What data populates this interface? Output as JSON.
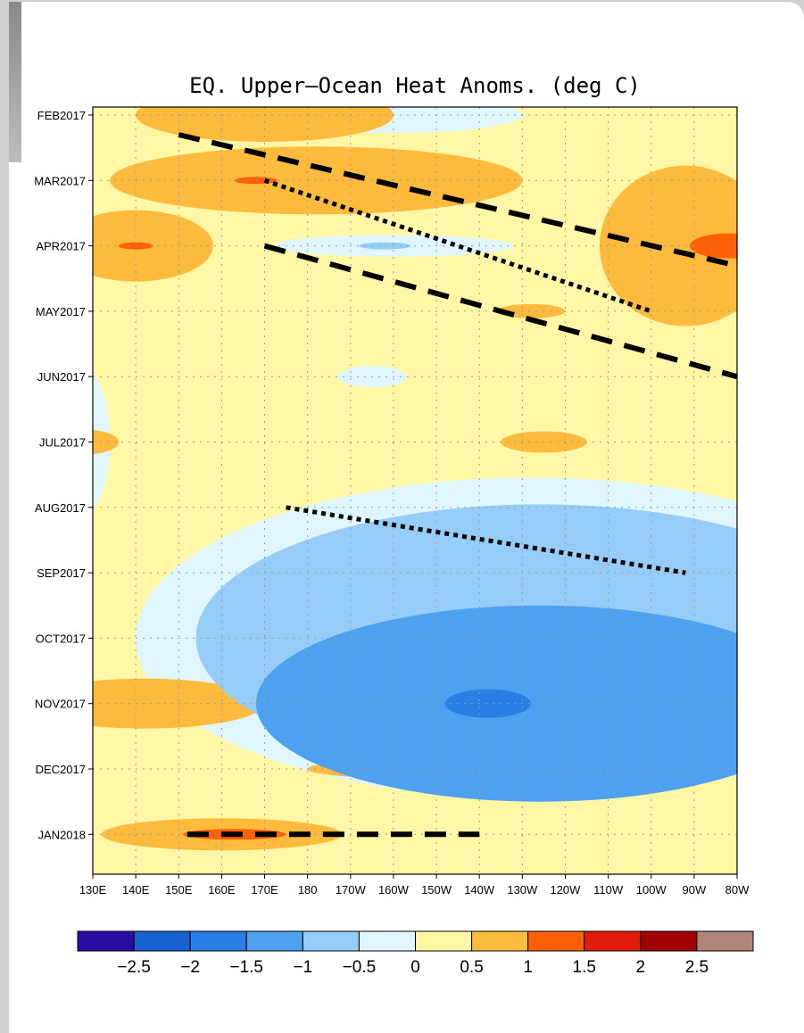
{
  "chart_data": {
    "type": "heatmap",
    "title": "EQ. Upper—Ocean Heat Anoms. (deg C)",
    "xlabel": "",
    "ylabel": "",
    "x_ticks": [
      "130E",
      "140E",
      "150E",
      "160E",
      "170E",
      "180",
      "170W",
      "160W",
      "150W",
      "140W",
      "130W",
      "120W",
      "110W",
      "100W",
      "90W",
      "80W"
    ],
    "y_ticks": [
      "FEB2017",
      "MAR2017",
      "APR2017",
      "MAY2017",
      "JUN2017",
      "JUL2017",
      "AUG2017",
      "SEP2017",
      "OCT2017",
      "NOV2017",
      "DEC2017",
      "JAN2018"
    ],
    "grid": true,
    "colorbar": {
      "levels": [
        -2.5,
        -2,
        -1.5,
        -1,
        -0.5,
        0,
        0.5,
        1,
        1.5,
        2,
        2.5
      ],
      "labels": [
        "−2.5",
        "−2",
        "−1.5",
        "−1",
        "−0.5",
        "0",
        "0.5",
        "1",
        "1.5",
        "2",
        "2.5"
      ],
      "colors": [
        "#2a0ea3",
        "#1660cf",
        "#2a7fe6",
        "#4ea1ef",
        "#96cdf8",
        "#dff6ff",
        "#fff7a6",
        "#fdbb3e",
        "#fd6006",
        "#e11c0a",
        "#a10000",
        "#b08477"
      ]
    },
    "anomaly_regions": [
      {
        "value": 0.75,
        "cx": 182,
        "cy": "MAR2017",
        "rx": 48,
        "ry": 38
      },
      {
        "value": 0.75,
        "cx": 140,
        "cy": "APR2017",
        "rx": 18,
        "ry": 40
      },
      {
        "value": 0.75,
        "cx": 170,
        "cy": "FEB2017",
        "rx": 30,
        "ry": 30
      },
      {
        "value": 0.75,
        "cx": 87,
        "cy": "APR2017",
        "rx": 7,
        "ry": 55
      },
      {
        "value": 0.75,
        "cx": 128,
        "cy": "JUL2017",
        "rx": 8,
        "ry": 14
      },
      {
        "value": 0.75,
        "cx": 142,
        "cy": "NOV2017",
        "rx": 28,
        "ry": 28
      },
      {
        "value": 0.75,
        "cx": 160,
        "cy": "JAN2018",
        "rx": 28,
        "ry": 18
      },
      {
        "value": 0.75,
        "cx": 200,
        "cy": "DEC2017",
        "rx": 20,
        "ry": 10
      },
      {
        "value": 1.25,
        "cx": 168,
        "cy": "MAR2017",
        "rx": 5,
        "ry": 4
      },
      {
        "value": 1.25,
        "cx": 140,
        "cy": "APR2017",
        "rx": 4,
        "ry": 4
      },
      {
        "value": 1.25,
        "cx": 163,
        "cy": "JAN2018",
        "rx": 12,
        "ry": 6
      },
      {
        "value": -0.25,
        "cx": 200,
        "cy": "FEB2017",
        "rx": 30,
        "ry": 20
      },
      {
        "value": -0.25,
        "cx": 200,
        "cy": "APR2017",
        "rx": 28,
        "ry": 12
      },
      {
        "value": -0.25,
        "cx": 195,
        "cy": "JUN2017",
        "rx": 8,
        "ry": 12
      },
      {
        "value": -0.25,
        "cx": 128,
        "cy": "JUL2017",
        "rx": 6,
        "ry": 80
      },
      {
        "value": -0.25,
        "cx": 232,
        "cy": "OCT2017",
        "rx": 92,
        "ry": 180
      },
      {
        "value": -0.75,
        "cx": 198,
        "cy": "APR2017",
        "rx": 6,
        "ry": 4
      },
      {
        "value": -0.75,
        "cx": 234,
        "cy": "OCT2017",
        "rx": 80,
        "ry": 150
      },
      {
        "value": -1.25,
        "cx": 234,
        "cy": "NOV2017",
        "rx": 66,
        "ry": 110
      },
      {
        "value": -1.75,
        "cx": 222,
        "cy": "NOV2017",
        "rx": 10,
        "ry": 16
      },
      {
        "value": 0.75,
        "cx": 268,
        "cy": "APR2017",
        "rx": 20,
        "ry": 90
      },
      {
        "value": 0.75,
        "cx": 235,
        "cy": "JUL2017",
        "rx": 10,
        "ry": 12
      },
      {
        "value": 0.75,
        "cx": 232,
        "cy": "MAY2017",
        "rx": 8,
        "ry": 8
      },
      {
        "value": 1.25,
        "cx": 278,
        "cy": "APR2017",
        "rx": 9,
        "ry": 14
      }
    ],
    "annotations": [
      {
        "style": "dashed",
        "from": [
          150,
          "FEB2017"
        ],
        "to": [
          278,
          "APR2017"
        ]
      },
      {
        "style": "dotted",
        "from": [
          170,
          "MAR2017"
        ],
        "to": [
          260,
          "MAY2017"
        ]
      },
      {
        "style": "dashed",
        "from": [
          170,
          "APR2017"
        ],
        "to": [
          280,
          "JUN2017"
        ]
      },
      {
        "style": "dotted",
        "from": [
          175,
          "AUG2017"
        ],
        "to": [
          268,
          "SEP2017"
        ]
      },
      {
        "style": "dashed",
        "from": [
          152,
          "JAN2018"
        ],
        "to": [
          220,
          "JAN2018"
        ]
      }
    ]
  }
}
